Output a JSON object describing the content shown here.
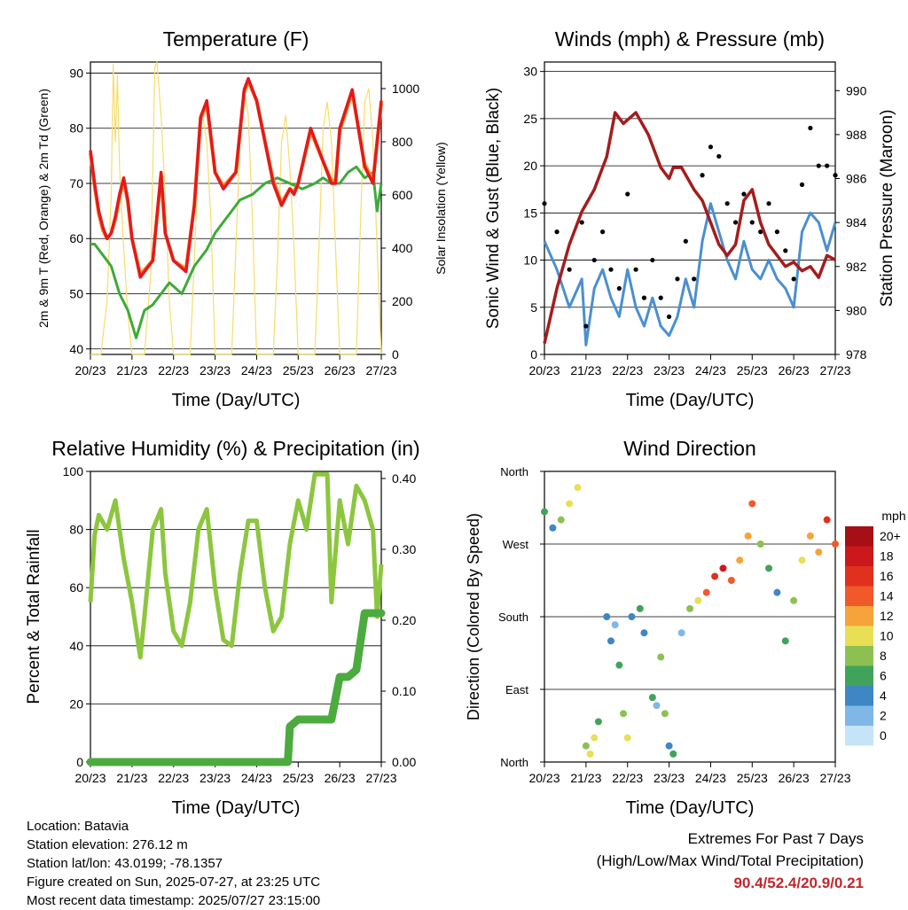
{
  "colors": {
    "t2m": "#e31a1c",
    "t9m": "#f28c28",
    "td2m": "#3daa3a",
    "solar": "#f6dd6a",
    "wind": "#4a8fd1",
    "gust": "#000000",
    "pressure": "#a51c1c",
    "rh": "#8cc63f",
    "precip": "#4cab3f"
  },
  "chart_data": [
    {
      "id": "temperature",
      "type": "line",
      "title": "Temperature (F)",
      "xlabel": "Time (Day/UTC)",
      "ylabel": "2m & 9m T (Red, Orange) & 2m Td (Green)",
      "y2label": "Solar Insolation (Yellow)",
      "xticks": [
        "20/23",
        "21/23",
        "22/23",
        "23/23",
        "24/23",
        "25/23",
        "26/23",
        "27/23"
      ],
      "ylim": [
        39,
        92
      ],
      "yticks": [
        40,
        50,
        60,
        70,
        80,
        90
      ],
      "y2lim": [
        0,
        1100
      ],
      "y2ticks": [
        0,
        200,
        400,
        600,
        800,
        1000
      ],
      "grid": true,
      "series": [
        {
          "key": "t2m",
          "x": [
            0,
            0.1,
            0.2,
            0.3,
            0.4,
            0.5,
            0.6,
            0.7,
            0.8,
            0.9,
            1.0,
            1.2,
            1.5,
            1.7,
            1.8,
            2.0,
            2.3,
            2.5,
            2.65,
            2.8,
            3.0,
            3.2,
            3.5,
            3.7,
            3.8,
            4.0,
            4.4,
            4.6,
            4.8,
            4.9,
            5.0,
            5.3,
            5.6,
            5.8,
            5.9,
            6.0,
            6.3,
            6.6,
            6.8,
            7.0
          ],
          "values": [
            76,
            70,
            65,
            62,
            60,
            61,
            64,
            68,
            71,
            67,
            60,
            53,
            56,
            72,
            61,
            56,
            54,
            66,
            82,
            85,
            72,
            69,
            72,
            87,
            89,
            85,
            70,
            66,
            69,
            68,
            70,
            80,
            74,
            70,
            70,
            80,
            87,
            73,
            70,
            85
          ]
        },
        {
          "key": "t9m",
          "x": [
            0,
            0.1,
            0.2,
            0.3,
            0.4,
            0.5,
            0.6,
            0.7,
            0.8,
            0.9,
            1.0,
            1.2,
            1.5,
            1.7,
            1.8,
            2.0,
            2.3,
            2.5,
            2.65,
            2.8,
            3.0,
            3.2,
            3.5,
            3.7,
            3.8,
            4.0,
            4.4,
            4.6,
            4.8,
            4.9,
            5.0,
            5.3,
            5.6,
            5.8,
            5.9,
            6.0,
            6.3,
            6.6,
            6.8,
            7.0
          ],
          "values": [
            75.5,
            69.5,
            64.5,
            61.5,
            60,
            61,
            63.5,
            67.5,
            70.5,
            66.5,
            60,
            53.5,
            56,
            71.5,
            61,
            56,
            54.5,
            66,
            81.5,
            84.5,
            72,
            69.5,
            72,
            86.5,
            88.5,
            85,
            70.5,
            66.5,
            69,
            68.5,
            70,
            79.5,
            74,
            70.5,
            70.5,
            79.5,
            86.5,
            73.5,
            70.5,
            84.5
          ]
        },
        {
          "key": "td2m",
          "x": [
            0,
            0.1,
            0.3,
            0.5,
            0.7,
            0.9,
            1.1,
            1.3,
            1.5,
            1.7,
            1.9,
            2.2,
            2.5,
            2.8,
            3.0,
            3.3,
            3.6,
            3.9,
            4.2,
            4.5,
            4.8,
            5.1,
            5.4,
            5.6,
            5.8,
            6.0,
            6.2,
            6.4,
            6.6,
            6.8,
            6.9,
            7.0
          ],
          "values": [
            59,
            59,
            57,
            55,
            50,
            47,
            42,
            47,
            48,
            50,
            52,
            50,
            55,
            58,
            61,
            64,
            67,
            68,
            70,
            71,
            70,
            69,
            70,
            71,
            70,
            70,
            72,
            73,
            71,
            72,
            65,
            70
          ]
        },
        {
          "key": "solar",
          "x": [
            0,
            0.25,
            0.4,
            0.5,
            0.55,
            0.6,
            0.65,
            0.7,
            0.8,
            0.9,
            1.0,
            1.3,
            1.45,
            1.55,
            1.6,
            1.7,
            1.8,
            1.9,
            2.0,
            2.4,
            2.5,
            2.6,
            2.7,
            2.8,
            2.9,
            3.0,
            3.4,
            3.5,
            3.6,
            3.7,
            3.8,
            3.9,
            4.0,
            4.4,
            4.5,
            4.6,
            4.7,
            4.8,
            4.9,
            5.0,
            5.4,
            5.5,
            5.6,
            5.7,
            5.8,
            5.9,
            6.0,
            6.4,
            6.5,
            6.6,
            6.7,
            6.8,
            6.9,
            7.0
          ],
          "values": [
            0,
            0,
            200,
            600,
            1090,
            800,
            1050,
            700,
            400,
            150,
            0,
            0,
            300,
            1080,
            1100,
            900,
            600,
            200,
            0,
            0,
            350,
            750,
            900,
            800,
            500,
            0,
            0,
            400,
            800,
            1000,
            900,
            500,
            0,
            0,
            350,
            800,
            900,
            700,
            400,
            0,
            0,
            400,
            850,
            950,
            800,
            400,
            0,
            0,
            500,
            950,
            1000,
            800,
            400,
            0
          ]
        }
      ]
    },
    {
      "id": "winds",
      "type": "scatter",
      "title": "Winds (mph) & Pressure (mb)",
      "xlabel": "Time (Day/UTC)",
      "ylabel": "Sonic Wind & Gust (Blue, Black)",
      "y2label": "Station Pressure (Maroon)",
      "xticks": [
        "20/23",
        "21/23",
        "22/23",
        "23/23",
        "24/23",
        "25/23",
        "26/23",
        "27/23"
      ],
      "ylim": [
        0,
        31
      ],
      "yticks": [
        0,
        5,
        10,
        15,
        20,
        25,
        30
      ],
      "y2lim": [
        978,
        991.3
      ],
      "y2ticks": [
        978,
        980,
        982,
        984,
        986,
        988,
        990
      ],
      "grid": true,
      "series": [
        {
          "key": "wind",
          "x": [
            0,
            0.3,
            0.6,
            0.9,
            1.0,
            1.2,
            1.4,
            1.6,
            1.8,
            2.0,
            2.2,
            2.4,
            2.6,
            2.8,
            3.0,
            3.2,
            3.4,
            3.6,
            3.8,
            4.0,
            4.2,
            4.4,
            4.6,
            4.8,
            5.0,
            5.2,
            5.4,
            5.6,
            5.8,
            6.0,
            6.2,
            6.4,
            6.6,
            6.8,
            7.0
          ],
          "values": [
            12,
            9,
            5,
            8,
            1,
            7,
            9,
            6,
            4,
            9,
            5,
            3,
            6,
            3,
            2,
            4,
            8,
            5,
            12,
            16,
            13,
            10,
            8,
            12,
            9,
            8,
            10,
            8,
            7,
            5,
            13,
            15,
            14,
            11,
            14
          ]
        },
        {
          "key": "gust",
          "x": [
            0,
            0.3,
            0.6,
            0.9,
            1.0,
            1.2,
            1.4,
            1.6,
            1.8,
            2.0,
            2.2,
            2.4,
            2.6,
            2.8,
            3.0,
            3.2,
            3.4,
            3.6,
            3.8,
            4.0,
            4.2,
            4.4,
            4.6,
            4.8,
            5.0,
            5.2,
            5.4,
            5.6,
            5.8,
            6.0,
            6.2,
            6.4,
            6.6,
            6.8,
            7.0
          ],
          "values": [
            16,
            13,
            9,
            14,
            3,
            10,
            13,
            9,
            7,
            17,
            9,
            6,
            10,
            6,
            4,
            8,
            12,
            8,
            19,
            22,
            21,
            16,
            14,
            17,
            14,
            13,
            16,
            13,
            11,
            8,
            18,
            24,
            20,
            20,
            19
          ]
        },
        {
          "key": "pressure",
          "x": [
            0,
            0.3,
            0.6,
            0.9,
            1.2,
            1.5,
            1.7,
            1.9,
            2.2,
            2.5,
            2.8,
            3.0,
            3.1,
            3.3,
            3.6,
            3.8,
            4.0,
            4.2,
            4.4,
            4.6,
            4.8,
            5.0,
            5.2,
            5.4,
            5.6,
            5.8,
            6.0,
            6.2,
            6.4,
            6.6,
            6.8,
            7.0
          ],
          "values": [
            978.5,
            981,
            983,
            984.5,
            985.5,
            987,
            989,
            988.5,
            989,
            988,
            986.5,
            986,
            986.5,
            986.5,
            985.5,
            985,
            984,
            983,
            982.5,
            983,
            985,
            985.5,
            984,
            983,
            982.5,
            982,
            982.2,
            981.8,
            982,
            981.5,
            982.5,
            982.3
          ]
        }
      ]
    },
    {
      "id": "humidity",
      "type": "line",
      "title": "Relative Humidity (%) & Precipitation (in)",
      "xlabel": "Time (Day/UTC)",
      "ylabel": "Percent & Total Rainfall",
      "xticks": [
        "20/23",
        "21/23",
        "22/23",
        "23/23",
        "24/23",
        "25/23",
        "26/23",
        "27/23"
      ],
      "ylim": [
        0,
        100
      ],
      "yticks": [
        0,
        20,
        40,
        60,
        80,
        100
      ],
      "y2lim": [
        0,
        0.41
      ],
      "y2ticks": [
        "0.00",
        "0.10",
        "0.20",
        "0.30",
        "0.40"
      ],
      "grid": true,
      "series": [
        {
          "key": "rh",
          "x": [
            0,
            0.1,
            0.2,
            0.4,
            0.6,
            0.7,
            0.8,
            1.0,
            1.2,
            1.3,
            1.5,
            1.7,
            1.8,
            2.0,
            2.2,
            2.4,
            2.6,
            2.8,
            3.0,
            3.2,
            3.4,
            3.6,
            3.8,
            4.0,
            4.2,
            4.4,
            4.6,
            4.8,
            5.0,
            5.2,
            5.4,
            5.7,
            5.8,
            6.0,
            6.2,
            6.4,
            6.6,
            6.8,
            6.9,
            7.0
          ],
          "values": [
            55,
            78,
            85,
            80,
            90,
            80,
            70,
            55,
            36,
            50,
            80,
            87,
            65,
            45,
            40,
            55,
            80,
            87,
            60,
            42,
            40,
            65,
            83,
            83,
            60,
            45,
            50,
            75,
            90,
            80,
            99,
            99,
            55,
            90,
            75,
            95,
            90,
            80,
            50,
            68
          ]
        },
        {
          "key": "precip",
          "x": [
            0,
            4.75,
            4.8,
            5.0,
            5.4,
            5.8,
            6.0,
            6.2,
            6.4,
            6.6,
            6.8,
            7.0
          ],
          "values": [
            0,
            0,
            0.05,
            0.06,
            0.06,
            0.06,
            0.12,
            0.12,
            0.13,
            0.21,
            0.21,
            0.21
          ]
        }
      ]
    },
    {
      "id": "wind_direction",
      "type": "scatter",
      "title": "Wind Direction",
      "xlabel": "Time (Day/UTC)",
      "ylabel": "Direction (Colored By Speed)",
      "xticks": [
        "20/23",
        "21/23",
        "22/23",
        "23/23",
        "24/23",
        "25/23",
        "26/23",
        "27/23"
      ],
      "yticks": [
        "North",
        "East",
        "South",
        "West",
        "North"
      ],
      "ylim": [
        0,
        360
      ],
      "grid": true,
      "x": [
        0,
        0.2,
        0.4,
        0.6,
        0.8,
        1.0,
        1.1,
        1.2,
        1.3,
        1.5,
        1.6,
        1.7,
        1.8,
        1.9,
        2.0,
        2.1,
        2.3,
        2.4,
        2.6,
        2.7,
        2.8,
        2.9,
        3.0,
        3.1,
        3.3,
        3.5,
        3.7,
        3.9,
        4.1,
        4.3,
        4.5,
        4.7,
        4.9,
        5.0,
        5.2,
        5.4,
        5.6,
        5.8,
        6.0,
        6.2,
        6.4,
        6.6,
        6.8,
        7.0
      ],
      "values": [
        310,
        290,
        300,
        320,
        340,
        20,
        10,
        30,
        50,
        180,
        150,
        170,
        120,
        60,
        30,
        180,
        190,
        160,
        80,
        70,
        130,
        60,
        20,
        10,
        160,
        190,
        200,
        210,
        230,
        240,
        225,
        250,
        280,
        320,
        270,
        240,
        210,
        150,
        200,
        250,
        280,
        260,
        300,
        270
      ],
      "speeds": [
        6,
        4,
        8,
        10,
        9,
        7,
        9,
        10,
        6,
        3,
        4,
        2,
        5,
        8,
        10,
        3,
        5,
        4,
        6,
        2,
        7,
        8,
        3,
        6,
        2,
        8,
        10,
        14,
        16,
        18,
        13,
        11,
        12,
        14,
        8,
        5,
        4,
        6,
        7,
        9,
        11,
        12,
        16,
        14
      ],
      "legend": {
        "title": "mph",
        "labels": [
          "20+",
          "18",
          "16",
          "14",
          "12",
          "10",
          "8",
          "6",
          "4",
          "2",
          "0"
        ],
        "colors": [
          "#a50f15",
          "#cb181d",
          "#e0301e",
          "#f05a2b",
          "#f7a33c",
          "#e9df55",
          "#8cc152",
          "#41a35b",
          "#3f86c4",
          "#7fb7e6",
          "#c6e4f7"
        ]
      }
    }
  ],
  "footer": {
    "location": "Location: Batavia",
    "elevation": "Station elevation: 276.12 m",
    "latlon": "Station lat/lon: 43.0199; -78.1357",
    "created": "Figure created on Sun, 2025-07-27, at 23:25 UTC",
    "recent": "Most recent data timestamp: 2025/07/27 23:15:00",
    "extremes_title": "Extremes For Past 7 Days",
    "extremes_sub": "(High/Low/Max Wind/Total Precipitation)",
    "extremes_values": "90.4/52.4/20.9/0.21"
  }
}
